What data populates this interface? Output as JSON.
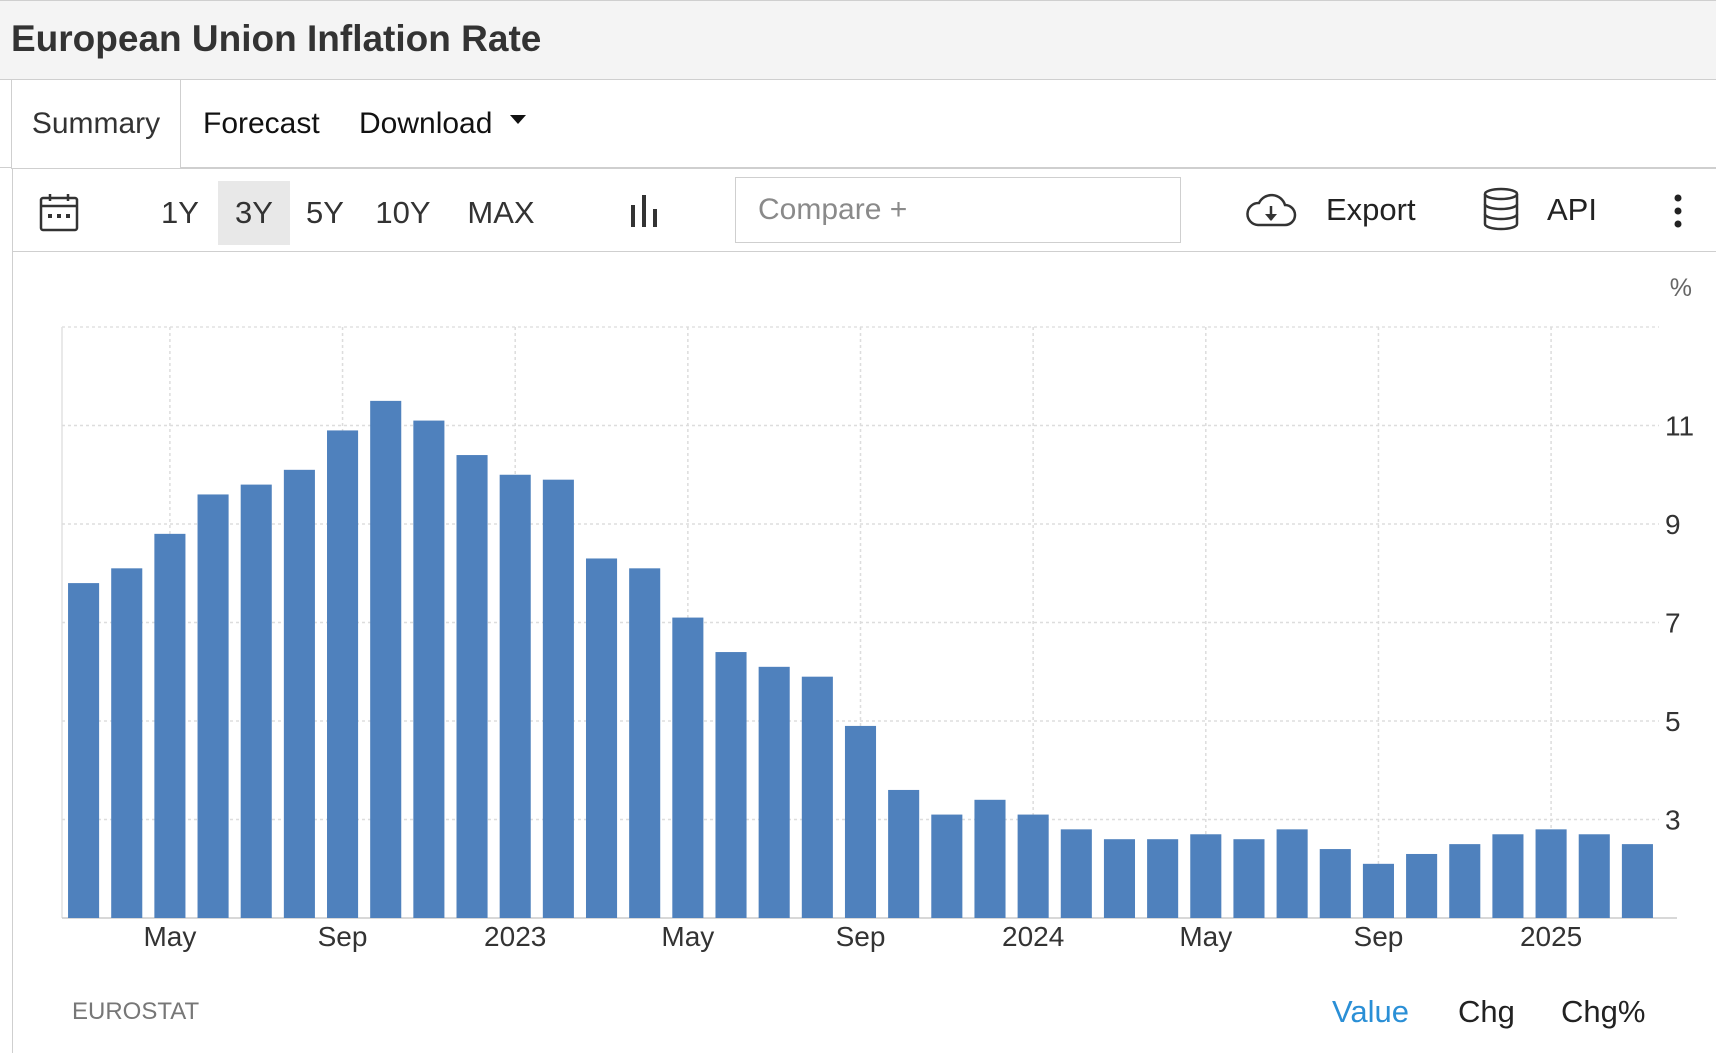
{
  "title": "European Union Inflation Rate",
  "tabs": {
    "summary": "Summary",
    "forecast": "Forecast",
    "download": "Download"
  },
  "toolbar": {
    "ranges": [
      "1Y",
      "3Y",
      "5Y",
      "10Y",
      "MAX"
    ],
    "active_range": "3Y",
    "compare_placeholder": "Compare +",
    "export_label": "Export",
    "api_label": "API",
    "icons": [
      "calendar-icon",
      "bar-chart-icon",
      "cloud-download-icon",
      "database-icon",
      "more-vertical-icon"
    ]
  },
  "footer": {
    "source": "EUROSTAT",
    "tabs": [
      "Value",
      "Chg",
      "Chg%"
    ],
    "active_tab": "Value"
  },
  "colors": {
    "bar": "#4f81bd",
    "active_tab": "#2a8fd6",
    "grid": "#dddddd"
  },
  "chart_data": {
    "type": "bar",
    "unit": "%",
    "x_tick_labels": [
      "May",
      "Sep",
      "2023",
      "May",
      "Sep",
      "2024",
      "May",
      "Sep",
      "2025"
    ],
    "y_ticks": [
      3,
      5,
      7,
      9,
      11
    ],
    "ylim": [
      1.0,
      13.0
    ],
    "grid": true,
    "y_axis_position": "right",
    "categories": [
      "2022-03",
      "2022-04",
      "2022-05",
      "2022-06",
      "2022-07",
      "2022-08",
      "2022-09",
      "2022-10",
      "2022-11",
      "2022-12",
      "2023-01",
      "2023-02",
      "2023-03",
      "2023-04",
      "2023-05",
      "2023-06",
      "2023-07",
      "2023-08",
      "2023-09",
      "2023-10",
      "2023-11",
      "2023-12",
      "2024-01",
      "2024-02",
      "2024-03",
      "2024-04",
      "2024-05",
      "2024-06",
      "2024-07",
      "2024-08",
      "2024-09",
      "2024-10",
      "2024-11",
      "2024-12",
      "2025-01",
      "2025-02",
      "2025-03"
    ],
    "values": [
      7.8,
      8.1,
      8.8,
      9.6,
      9.8,
      10.1,
      10.9,
      11.5,
      11.1,
      10.4,
      10.0,
      9.9,
      8.3,
      8.1,
      7.1,
      6.4,
      6.1,
      5.9,
      4.9,
      3.6,
      3.1,
      3.4,
      3.1,
      2.8,
      2.6,
      2.6,
      2.7,
      2.6,
      2.8,
      2.4,
      2.1,
      2.3,
      2.5,
      2.7,
      2.8,
      2.7,
      2.5
    ]
  }
}
